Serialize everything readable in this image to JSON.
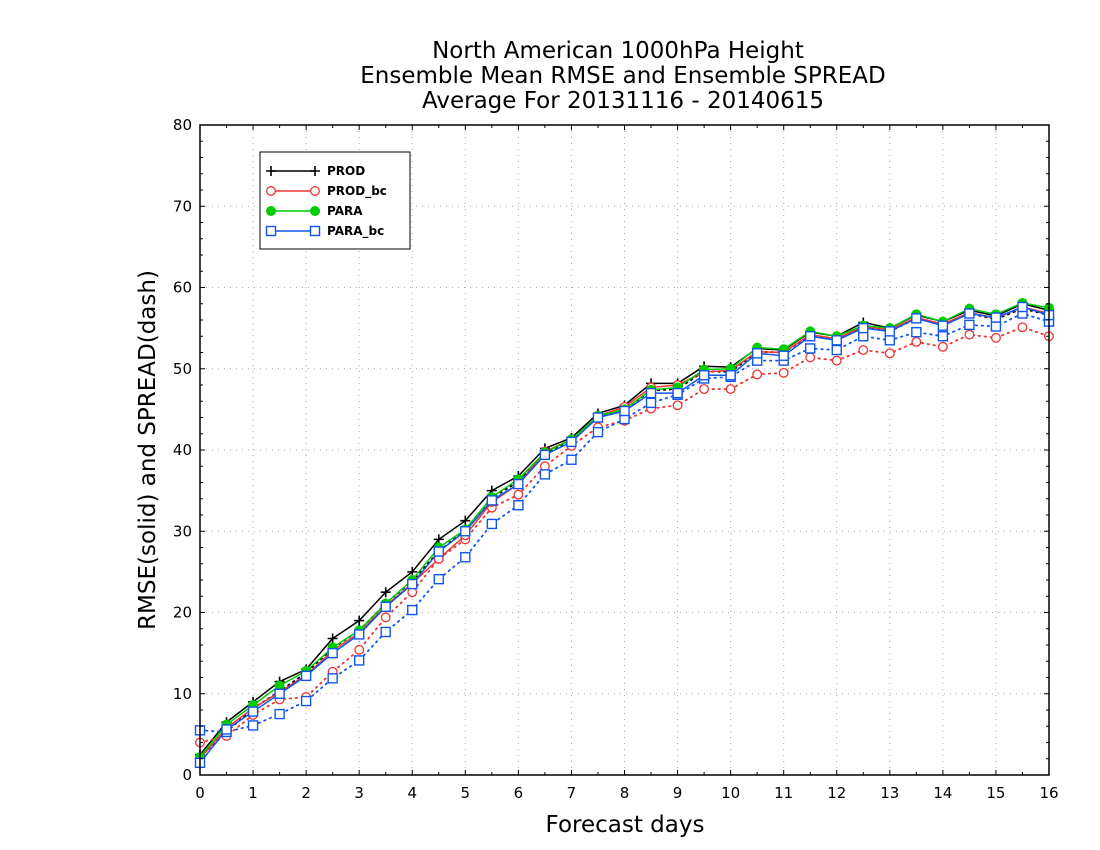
{
  "chart_data": {
    "type": "line",
    "title_lines": [
      "North American 1000hPa Height",
      "Ensemble Mean RMSE and Ensemble SPREAD",
      "Average For 20131116 - 20140615"
    ],
    "xlabel": "Forecast days",
    "ylabel": "RMSE(solid) and SPREAD(dash)",
    "xlim": [
      0,
      16
    ],
    "ylim": [
      0,
      80
    ],
    "xticks": [
      0,
      1,
      2,
      3,
      4,
      5,
      6,
      7,
      8,
      9,
      10,
      11,
      12,
      13,
      14,
      15,
      16
    ],
    "yticks": [
      0,
      10,
      20,
      30,
      40,
      50,
      60,
      70,
      80
    ],
    "grid": true,
    "legend_position": "top-left",
    "x": [
      0,
      0.5,
      1,
      1.5,
      2,
      2.5,
      3,
      3.5,
      4,
      4.5,
      5,
      5.5,
      6,
      6.5,
      7,
      7.5,
      8,
      8.5,
      9,
      9.5,
      10,
      10.5,
      11,
      11.5,
      12,
      12.5,
      13,
      13.5,
      14,
      14.5,
      15,
      15.5,
      16
    ],
    "series": [
      {
        "name": "PROD",
        "color": "#000000",
        "marker": "plus",
        "rmse": [
          2.5,
          6.5,
          9,
          11.5,
          13,
          16.8,
          19,
          22.5,
          25,
          29,
          31.3,
          35,
          36.8,
          40.2,
          41.5,
          44.5,
          45.5,
          48.2,
          48.2,
          50.3,
          50.2,
          52.5,
          52.3,
          54.5,
          54,
          55.7,
          55,
          56.6,
          55.8,
          57.2,
          56.5,
          58,
          57.2
        ],
        "spread": [
          2.2,
          5.3,
          8.2,
          10.3,
          12.6,
          15.6,
          17.8,
          21.1,
          23.9,
          27.5,
          30.2,
          34.1,
          36.1,
          39.6,
          41.1,
          44.1,
          45,
          47.3,
          47.5,
          49.7,
          49.6,
          52.1,
          52,
          54.1,
          53.7,
          55.1,
          54.6,
          56.2,
          55.4,
          56.8,
          56.1,
          57.4,
          56.6
        ]
      },
      {
        "name": "PROD_bc",
        "color": "#ee3333",
        "marker": "circle-open",
        "rmse": [
          2,
          5.8,
          8.2,
          10.2,
          12.3,
          15.3,
          17.5,
          20.8,
          23.6,
          26.6,
          29.5,
          33.6,
          35.8,
          39.8,
          41.3,
          44.2,
          45.3,
          47.7,
          48,
          49.6,
          49.8,
          52.1,
          52,
          54.2,
          53.7,
          55.2,
          54.8,
          56.3,
          55.5,
          56.9,
          56.2,
          57.6,
          56.8
        ],
        "spread": [
          4,
          4.8,
          7.4,
          9.3,
          9.6,
          12.7,
          15.4,
          19.4,
          22.5,
          26.6,
          29,
          32.9,
          34.5,
          38,
          40.5,
          42.8,
          43.6,
          45.1,
          45.5,
          47.5,
          47.5,
          49.3,
          49.5,
          51.4,
          51,
          52.3,
          51.9,
          53.3,
          52.7,
          54.2,
          53.8,
          55.1,
          54
        ]
      },
      {
        "name": "PARA",
        "color": "#00cc00",
        "marker": "circle-filled",
        "rmse": [
          2.2,
          6.2,
          8.6,
          11,
          12.8,
          15.7,
          17.8,
          21.1,
          24,
          28,
          30.2,
          34.2,
          36.4,
          39.7,
          41.3,
          44.2,
          45,
          47.4,
          47.7,
          49.9,
          50,
          52.6,
          52.4,
          54.6,
          54,
          55.3,
          55,
          56.7,
          55.8,
          57.4,
          56.7,
          58.1,
          57.5
        ]
      },
      {
        "name": "PARA_bc",
        "color": "#1155ee",
        "marker": "square-open",
        "rmse": [
          1.5,
          5.6,
          7.8,
          10,
          12.2,
          15,
          17.3,
          20.7,
          23.5,
          27.5,
          30,
          33.8,
          35.8,
          39.4,
          41,
          44,
          44.8,
          47,
          47,
          49.2,
          49.2,
          51.9,
          51.6,
          54,
          53.5,
          55,
          54.6,
          56.2,
          55.3,
          56.8,
          56.3,
          57.6,
          56.6
        ],
        "spread": [
          5.5,
          5.3,
          6.1,
          7.5,
          9.1,
          11.9,
          14.1,
          17.6,
          20.3,
          24.1,
          26.8,
          30.9,
          33.2,
          37,
          38.8,
          42.2,
          43.8,
          45.8,
          46.8,
          48.8,
          49,
          51,
          51,
          52.5,
          52.3,
          54,
          53.5,
          54.5,
          54,
          55.4,
          55.2,
          56.8,
          55.8
        ]
      }
    ]
  }
}
